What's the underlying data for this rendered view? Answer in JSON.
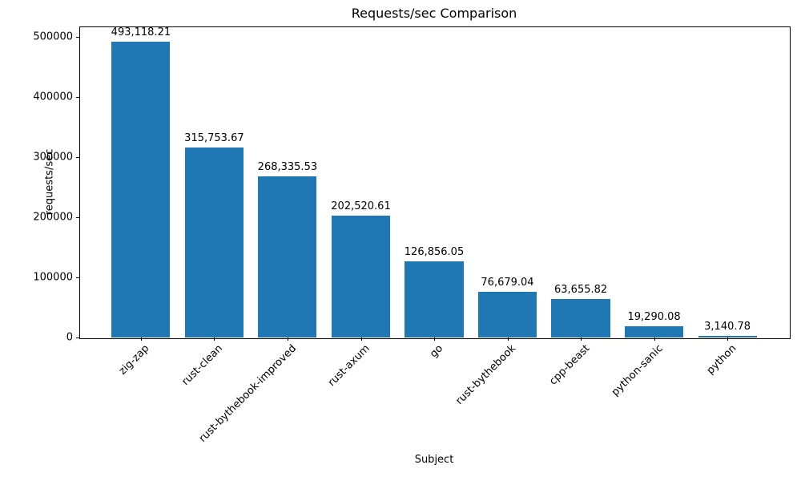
{
  "chart_data": {
    "type": "bar",
    "title": "Requests/sec Comparison",
    "xlabel": "Subject",
    "ylabel": "requests/sec",
    "categories": [
      "zig-zap",
      "rust-clean",
      "rust-bythebook-improved",
      "rust-axum",
      "go",
      "rust-bythebook",
      "cpp-beast",
      "python-sanic",
      "python"
    ],
    "values": [
      493118.21,
      315753.67,
      268335.53,
      202520.61,
      126856.05,
      76679.04,
      63655.82,
      19290.08,
      3140.78
    ],
    "bar_labels": [
      "493,118.21",
      "315,753.67",
      "268,335.53",
      "202,520.61",
      "126,856.05",
      "76,679.04",
      "63,655.82",
      "19,290.08",
      "3,140.78"
    ],
    "yticks": [
      0,
      100000,
      200000,
      300000,
      400000,
      500000
    ],
    "ytick_labels": [
      "0",
      "100000",
      "200000",
      "300000",
      "400000",
      "500000"
    ],
    "ylim": [
      0,
      517774
    ],
    "bar_color": "#1f77b4",
    "x_tick_rotation": 45,
    "grid": false,
    "legend_position": "none"
  }
}
